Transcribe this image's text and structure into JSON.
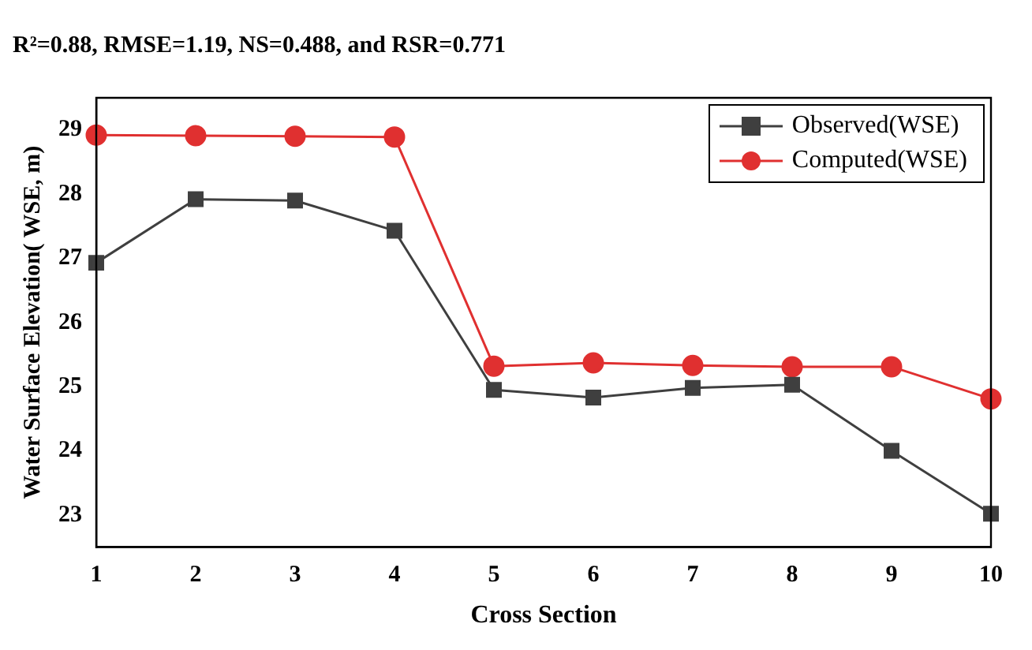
{
  "chart_data": {
    "type": "line",
    "title": "R²=0.88, RMSE=1.19, NS=0.488, and RSR=0.771",
    "xlabel": "Cross Section",
    "ylabel": "Water Surface Elevation( WSE, m)",
    "x": [
      1,
      2,
      3,
      4,
      5,
      6,
      7,
      8,
      9,
      10
    ],
    "series": [
      {
        "name": "Observed(WSE)",
        "color": "#3f3f3f",
        "marker": "square",
        "values": [
          26.93,
          27.92,
          27.9,
          27.43,
          24.95,
          24.83,
          24.98,
          25.03,
          24.0,
          23.02
        ]
      },
      {
        "name": "Computed(WSE)",
        "color": "#e03030",
        "marker": "circle",
        "values": [
          28.92,
          28.91,
          28.9,
          28.89,
          25.32,
          25.37,
          25.33,
          25.31,
          25.31,
          24.81
        ]
      }
    ],
    "xlim": [
      1,
      10
    ],
    "xticks": [
      1,
      2,
      3,
      4,
      5,
      6,
      7,
      8,
      9,
      10
    ],
    "ylim": [
      22.5,
      29.5
    ],
    "yticks": [
      23,
      24,
      25,
      26,
      27,
      28,
      29
    ],
    "grid": false,
    "legend": "top right"
  }
}
